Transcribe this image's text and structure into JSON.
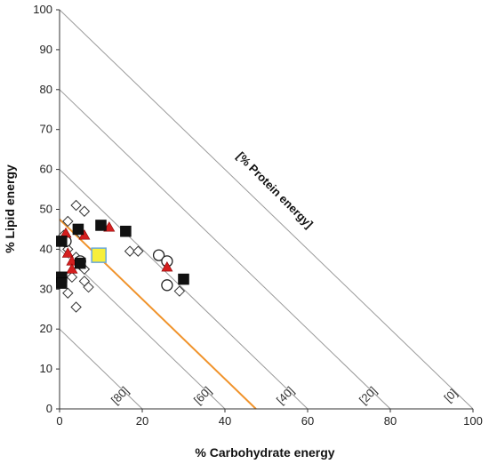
{
  "chart_data": {
    "type": "scatter",
    "xlabel": "% Carbohydrate energy",
    "ylabel": "% Lipid energy",
    "xlim": [
      0,
      100
    ],
    "ylim": [
      0,
      100
    ],
    "x_ticks": [
      "0",
      "20",
      "40",
      "60",
      "80",
      "100"
    ],
    "y_ticks": [
      "0",
      "10",
      "20",
      "30",
      "40",
      "50",
      "60",
      "70",
      "80",
      "90",
      "100"
    ],
    "grid": false,
    "annotation": "[% Protein energy]",
    "protein_isolines": [
      {
        "protein": 80,
        "label": "[80]"
      },
      {
        "protein": 60,
        "label": "[60]"
      },
      {
        "protein": 40,
        "label": "[40]"
      },
      {
        "protein": 20,
        "label": "[20]"
      },
      {
        "protein": 0,
        "label": "[0]"
      }
    ],
    "reference_line": {
      "color": "#f0932b",
      "x1": 0,
      "y1": 47.5,
      "x2": 47.5,
      "y2": 0
    },
    "series": [
      {
        "marker": "diamond",
        "points": [
          [
            4,
            51
          ],
          [
            6,
            49.5
          ],
          [
            2,
            47
          ],
          [
            5,
            44
          ],
          [
            1,
            43.5
          ],
          [
            2,
            40
          ],
          [
            4,
            38
          ],
          [
            5,
            36
          ],
          [
            6,
            35
          ],
          [
            3,
            33
          ],
          [
            6,
            32
          ],
          [
            7,
            30.5
          ],
          [
            2,
            29
          ],
          [
            4,
            25.5
          ],
          [
            17,
            39.5
          ],
          [
            19,
            39.5
          ],
          [
            29,
            29.5
          ]
        ]
      },
      {
        "marker": "circle",
        "points": [
          [
            1.5,
            42
          ],
          [
            5,
            37
          ],
          [
            24,
            38.5
          ],
          [
            26,
            37
          ],
          [
            26,
            31
          ]
        ]
      },
      {
        "marker": "triangle",
        "points": [
          [
            1.5,
            44
          ],
          [
            6,
            43.5
          ],
          [
            12,
            45.5
          ],
          [
            2,
            39
          ],
          [
            3,
            37
          ],
          [
            3,
            35
          ],
          [
            26,
            35.5
          ]
        ]
      },
      {
        "marker": "square",
        "points": [
          [
            4.5,
            45
          ],
          [
            10,
            46
          ],
          [
            16,
            44.5
          ],
          [
            0.5,
            42
          ],
          [
            5,
            36.5
          ],
          [
            0.5,
            33
          ],
          [
            30,
            32.5
          ],
          [
            0.5,
            31.5
          ]
        ]
      },
      {
        "marker": "highlight-square",
        "color": "#f7ef3a",
        "points": [
          [
            9.5,
            38.5
          ]
        ]
      }
    ]
  }
}
